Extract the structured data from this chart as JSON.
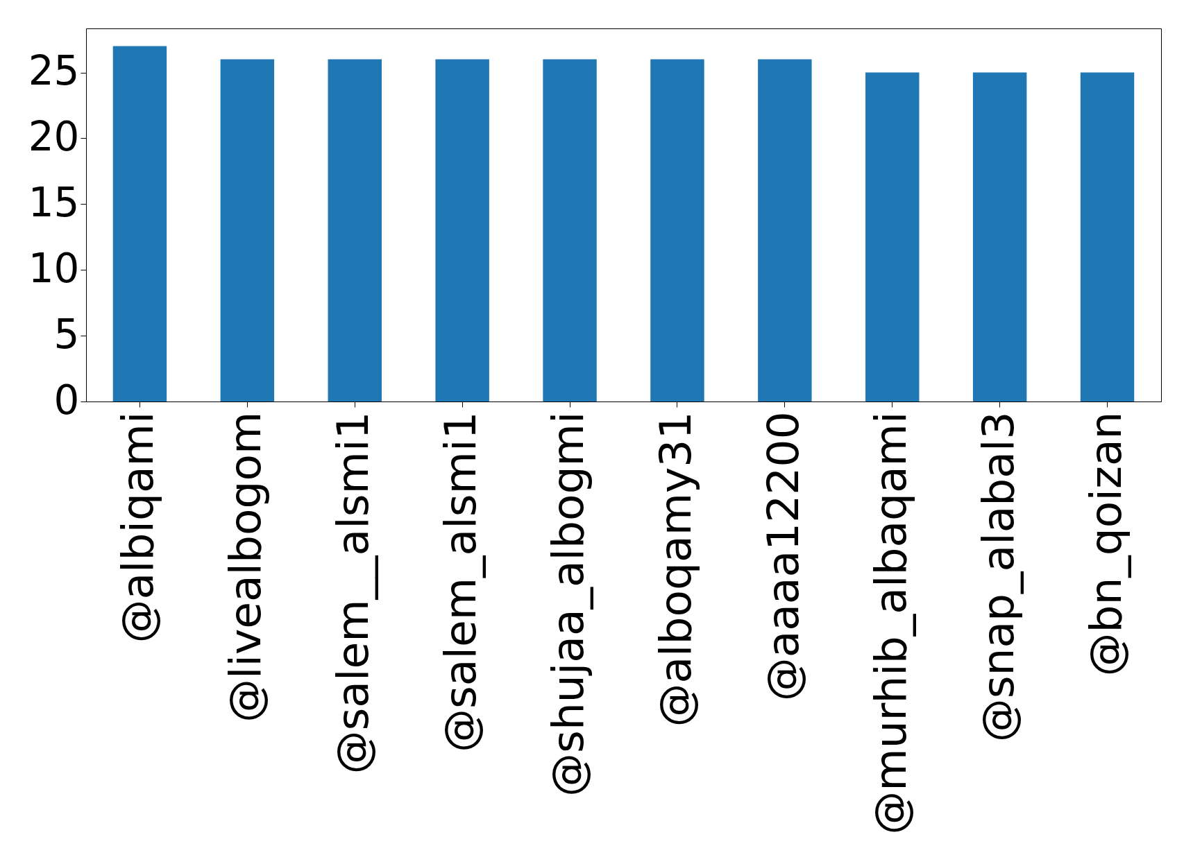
{
  "chart_data": {
    "type": "bar",
    "categories": [
      "@albiqami",
      "@livealbogom",
      "@salem__alsmi1",
      "@salem_alsmi1",
      "@shujaa_albogmi",
      "@alboqamy31",
      "@aaaa12200",
      "@murhib_albaqami",
      "@snap_alabal3",
      "@bn_qoizan"
    ],
    "values": [
      27,
      26,
      26,
      26,
      26,
      26,
      26,
      25,
      25,
      25
    ],
    "color": "#1f77b4",
    "ylim": [
      0,
      28.35
    ],
    "yticks": [
      0,
      5,
      10,
      15,
      20,
      25
    ],
    "grid": false
  }
}
